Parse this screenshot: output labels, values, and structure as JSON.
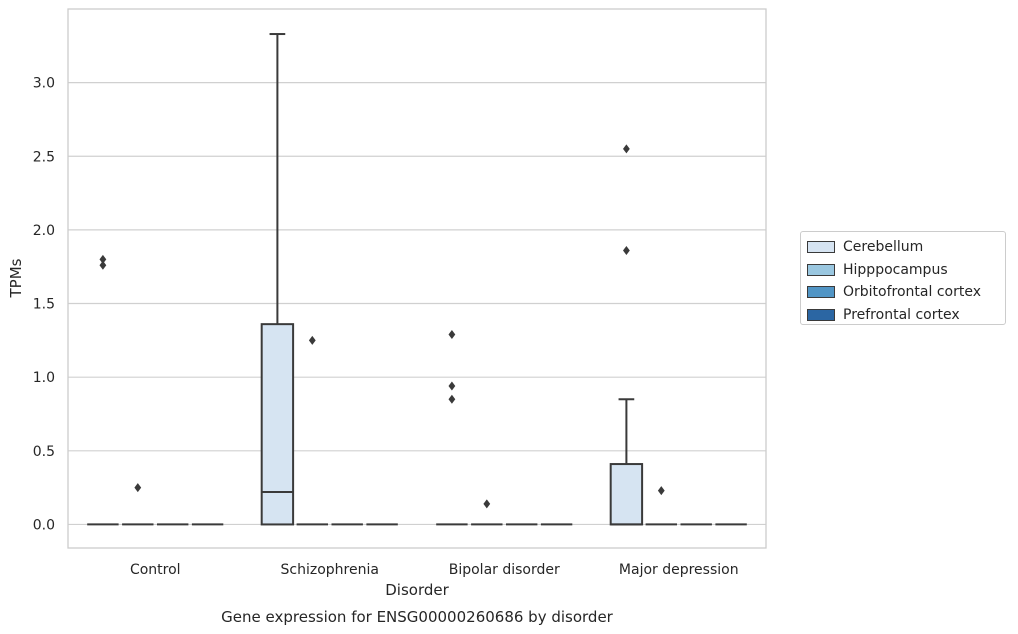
{
  "chart_data": {
    "type": "box",
    "title": "Gene expression for ENSG00000260686 by disorder",
    "xlabel": "Disorder",
    "ylabel": "TPMs",
    "ylim": [
      -0.16,
      3.5
    ],
    "yticks": [
      0.0,
      0.5,
      1.0,
      1.5,
      2.0,
      2.5,
      3.0
    ],
    "ytick_labels": [
      "0.0",
      "0.5",
      "1.0",
      "1.5",
      "2.0",
      "2.5",
      "3.0"
    ],
    "categories": [
      "Control",
      "Schizophrenia",
      "Bipolar disorder",
      "Major depression"
    ],
    "grid": true,
    "legend_position": "right",
    "series": [
      {
        "name": "Cerebellum",
        "color": "#d6e4f2",
        "boxes": [
          {
            "q1": 0.0,
            "median": 0.0,
            "q3": 0.0,
            "whisker_low": 0.0,
            "whisker_high": 0.0,
            "outliers": [
              1.76,
              1.8
            ]
          },
          {
            "q1": 0.0,
            "median": 0.22,
            "q3": 1.36,
            "whisker_low": 0.0,
            "whisker_high": 3.33,
            "outliers": []
          },
          {
            "q1": 0.0,
            "median": 0.0,
            "q3": 0.0,
            "whisker_low": 0.0,
            "whisker_high": 0.0,
            "outliers": [
              0.85,
              0.94,
              1.29
            ]
          },
          {
            "q1": 0.0,
            "median": 0.0,
            "q3": 0.41,
            "whisker_low": 0.0,
            "whisker_high": 0.85,
            "outliers": [
              1.86,
              2.55
            ]
          }
        ]
      },
      {
        "name": "Hipppocampus",
        "color": "#9ac7e0",
        "boxes": [
          {
            "q1": 0.0,
            "median": 0.0,
            "q3": 0.0,
            "whisker_low": 0.0,
            "whisker_high": 0.0,
            "outliers": [
              0.25
            ]
          },
          {
            "q1": 0.0,
            "median": 0.0,
            "q3": 0.0,
            "whisker_low": 0.0,
            "whisker_high": 0.0,
            "outliers": [
              1.25
            ]
          },
          {
            "q1": 0.0,
            "median": 0.0,
            "q3": 0.0,
            "whisker_low": 0.0,
            "whisker_high": 0.0,
            "outliers": [
              0.14
            ]
          },
          {
            "q1": 0.0,
            "median": 0.0,
            "q3": 0.0,
            "whisker_low": 0.0,
            "whisker_high": 0.0,
            "outliers": [
              0.23
            ]
          }
        ]
      },
      {
        "name": "Orbitofrontal cortex",
        "color": "#5195c5",
        "boxes": [
          {
            "q1": 0.0,
            "median": 0.0,
            "q3": 0.0,
            "whisker_low": 0.0,
            "whisker_high": 0.0,
            "outliers": []
          },
          {
            "q1": 0.0,
            "median": 0.0,
            "q3": 0.0,
            "whisker_low": 0.0,
            "whisker_high": 0.0,
            "outliers": []
          },
          {
            "q1": 0.0,
            "median": 0.0,
            "q3": 0.0,
            "whisker_low": 0.0,
            "whisker_high": 0.0,
            "outliers": []
          },
          {
            "q1": 0.0,
            "median": 0.0,
            "q3": 0.0,
            "whisker_low": 0.0,
            "whisker_high": 0.0,
            "outliers": []
          }
        ]
      },
      {
        "name": "Prefrontal cortex",
        "color": "#2b66a3",
        "boxes": [
          {
            "q1": 0.0,
            "median": 0.0,
            "q3": 0.0,
            "whisker_low": 0.0,
            "whisker_high": 0.0,
            "outliers": []
          },
          {
            "q1": 0.0,
            "median": 0.0,
            "q3": 0.0,
            "whisker_low": 0.0,
            "whisker_high": 0.0,
            "outliers": []
          },
          {
            "q1": 0.0,
            "median": 0.0,
            "q3": 0.0,
            "whisker_low": 0.0,
            "whisker_high": 0.0,
            "outliers": []
          },
          {
            "q1": 0.0,
            "median": 0.0,
            "q3": 0.0,
            "whisker_low": 0.0,
            "whisker_high": 0.0,
            "outliers": []
          }
        ]
      }
    ]
  }
}
